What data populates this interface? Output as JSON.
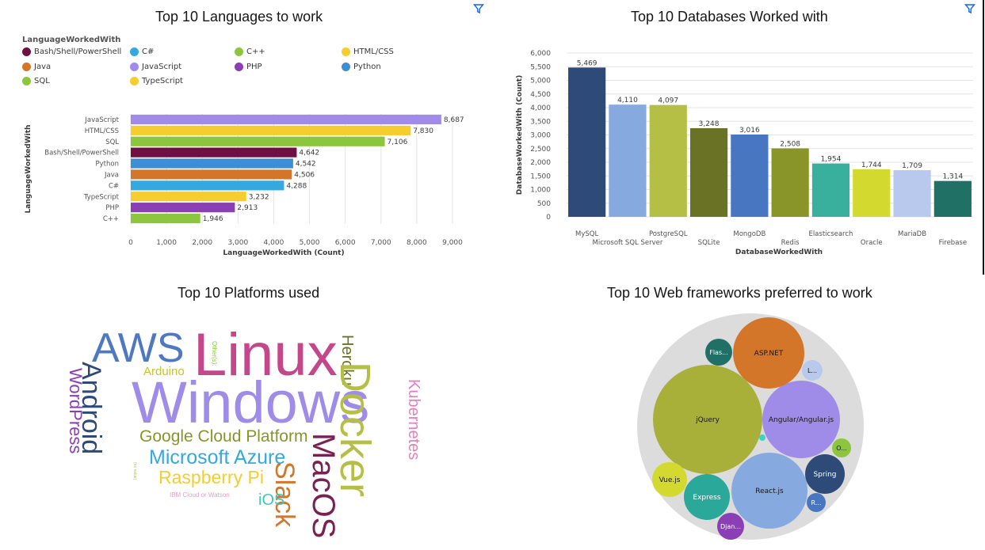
{
  "accent": "#0f62fe",
  "panels": {
    "languages": {
      "title": "Top 10 Languages to work",
      "filter_icon": "filter-icon"
    },
    "databases": {
      "title": "Top 10 Databases Worked with",
      "filter_icon": "filter-icon"
    },
    "platforms": {
      "title": "Top 10 Platforms used"
    },
    "frameworks": {
      "title": "Top 10 Web frameworks preferred to work"
    }
  },
  "chart_data": [
    {
      "type": "bar",
      "orientation": "horizontal",
      "title": "Top 10 Languages to work",
      "legend_title": "LanguageWorkedWith",
      "legend_position": "top-left",
      "legend": [
        {
          "label": "Bash/Shell/PowerShell",
          "color": "#6f0f44"
        },
        {
          "label": "C#",
          "color": "#33a9e0"
        },
        {
          "label": "C++",
          "color": "#8cc63f"
        },
        {
          "label": "HTML/CSS",
          "color": "#f5cd2f"
        },
        {
          "label": "Java",
          "color": "#d4762a"
        },
        {
          "label": "JavaScript",
          "color": "#a18be8"
        },
        {
          "label": "PHP",
          "color": "#8a3fb5"
        },
        {
          "label": "Python",
          "color": "#3a8fd6"
        },
        {
          "label": "SQL",
          "color": "#8cc63f"
        },
        {
          "label": "TypeScript",
          "color": "#f5cd2f"
        }
      ],
      "categories": [
        "JavaScript",
        "HTML/CSS",
        "SQL",
        "Bash/Shell/PowerShell",
        "Python",
        "Java",
        "C#",
        "TypeScript",
        "PHP",
        "C++"
      ],
      "values": [
        8687,
        7830,
        7106,
        4642,
        4542,
        4506,
        4288,
        3232,
        2913,
        1946
      ],
      "value_labels": [
        "8,687",
        "7,830",
        "7,106",
        "4,642",
        "4,542",
        "4,506",
        "4,288",
        "3,232",
        "2,913",
        "1,946"
      ],
      "colors": [
        "#a18be8",
        "#f5cd2f",
        "#8cc63f",
        "#6f0f44",
        "#3a8fd6",
        "#d4762a",
        "#33a9e0",
        "#f5cd2f",
        "#8a3fb5",
        "#8cc63f"
      ],
      "xlabel": "LanguageWorkedWith (Count)",
      "ylabel": "LanguageWorkedWith",
      "xlim": [
        0,
        9000
      ],
      "xticks": [
        "0",
        "1,000",
        "2,000",
        "3,000",
        "4,000",
        "5,000",
        "6,000",
        "7,000",
        "8,000",
        "9,000"
      ],
      "grid": true
    },
    {
      "type": "bar",
      "orientation": "vertical",
      "title": "Top 10 Databases Worked with",
      "categories": [
        "MySQL",
        "Microsoft SQL Server",
        "PostgreSQL",
        "SQLite",
        "MongoDB",
        "Redis",
        "Elasticsearch",
        "Oracle",
        "MariaDB",
        "Firebase"
      ],
      "values": [
        5469,
        4110,
        4097,
        3248,
        3016,
        2508,
        1954,
        1744,
        1709,
        1314
      ],
      "value_labels": [
        "5,469",
        "4,110",
        "4,097",
        "3,248",
        "3,016",
        "2,508",
        "1,954",
        "1,744",
        "1,709",
        "1,314"
      ],
      "colors": [
        "#2e4a78",
        "#86a9e0",
        "#b5bf45",
        "#6a7325",
        "#4876c0",
        "#8a9529",
        "#38b09d",
        "#d3d92e",
        "#b8c9ed",
        "#217066"
      ],
      "xlabel": "DatabaseWorkedWith",
      "ylabel": "DatabaseWorkedWith (Count)",
      "ylim": [
        0,
        6000
      ],
      "yticks": [
        "0",
        "500",
        "1,000",
        "1,500",
        "2,000",
        "2,500",
        "3,000",
        "3,500",
        "4,000",
        "4,500",
        "5,000",
        "5,500",
        "6,000"
      ],
      "grid": true
    },
    {
      "type": "wordcloud",
      "title": "Top 10 Platforms used",
      "words": [
        "AWS",
        "Linux",
        "Other(s):",
        "Heroku",
        "Arduino",
        "Android",
        "WordPress",
        "Windows",
        "Docker",
        "Kubernetes",
        "Google Cloud Platform",
        "Microsoft Azure",
        "MacOS",
        "Raspberry Pi",
        "Slack",
        "iOS",
        "IBM Cloud or Watson",
        "(no value)"
      ]
    },
    {
      "type": "bubble",
      "title": "Top 10 Web frameworks preferred to work",
      "labels": [
        "jQuery",
        "React.js",
        "Angular/Angular.js",
        "ASP.NET",
        "Express",
        "Spring",
        "Vue.js",
        "Django",
        "Flask",
        "Other(s)",
        "Laravel",
        "Ruby on Rails"
      ],
      "display_labels": [
        "jQuery",
        "React.js",
        "Angular/Angular.js",
        "ASP.NET",
        "Express",
        "Spring",
        "Vue.js",
        "Djan...",
        "Flas...",
        "O...",
        "L...",
        "R..."
      ],
      "colors": [
        "#a9b03a",
        "#86a9e0",
        "#9f8be8",
        "#d4762a",
        "#2aa89a",
        "#2e4a78",
        "#d3d92e",
        "#8a3fb5",
        "#217066",
        "#8cc63f",
        "#b8c9ed",
        "#4876c0"
      ]
    }
  ]
}
